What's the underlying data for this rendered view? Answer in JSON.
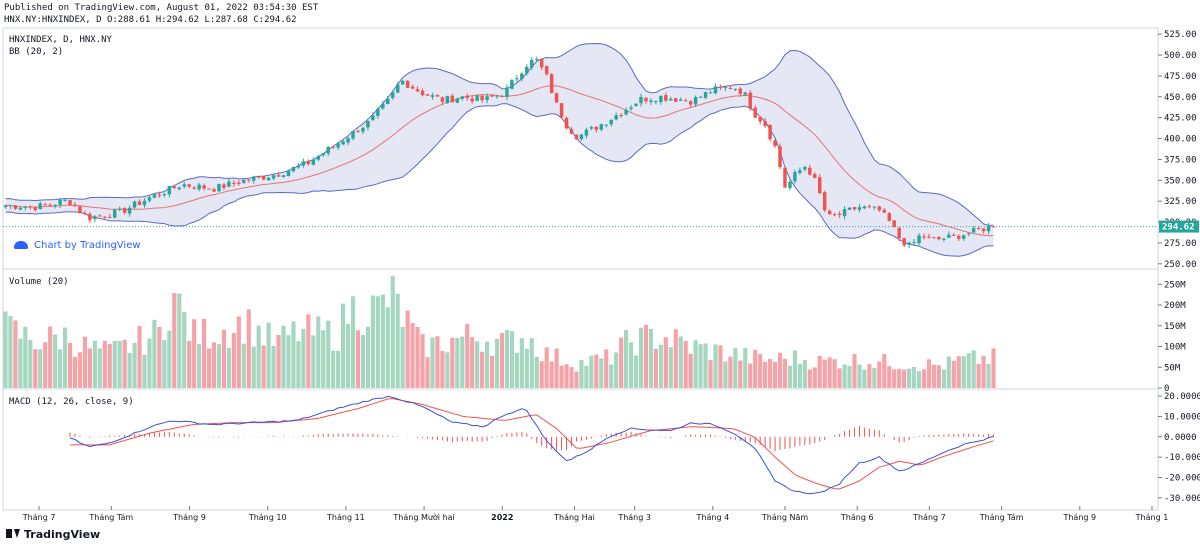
{
  "header": {
    "published": "Published on TradingView.com, August 01, 2022 03:54:30 EST",
    "symbol_line": "HNX.NY:HNXINDEX, D O:288.61 H:294.62 L:287.68 C:294.62"
  },
  "watermark": {
    "label": "Chart by TradingView"
  },
  "footer": {
    "logo_label": "TradingView"
  },
  "chart_data": [
    {
      "type": "candlestick",
      "title": "HNXINDEX, D, HNX.NY",
      "overlay_label": "BB (20, 2)",
      "ylim": [
        245,
        530
      ],
      "y_ticks": [
        "525.00",
        "500.00",
        "475.00",
        "450.00",
        "425.00",
        "400.00",
        "375.00",
        "350.00",
        "325.00",
        "300.00",
        "275.00",
        "250.00"
      ],
      "last_price": {
        "value": 294.62,
        "label": "294.62"
      },
      "colors": {
        "up": "#26a69a",
        "down": "#ef5350",
        "band_fill": "#c5cae9",
        "band_line": "#5c6bc0",
        "basis": "#e57373",
        "price_line": "#26a69a"
      },
      "close_anchors": [
        [
          0,
          320
        ],
        [
          3,
          318
        ],
        [
          6,
          326
        ],
        [
          8,
          305
        ],
        [
          11,
          312
        ],
        [
          14,
          330
        ],
        [
          17,
          345
        ],
        [
          20,
          340
        ],
        [
          23,
          350
        ],
        [
          26,
          357
        ],
        [
          29,
          370
        ],
        [
          32,
          395
        ],
        [
          35,
          420
        ],
        [
          37,
          448
        ],
        [
          38,
          470
        ],
        [
          40,
          455
        ],
        [
          42,
          446
        ],
        [
          44,
          450
        ],
        [
          46,
          446
        ],
        [
          48,
          455
        ],
        [
          50,
          488
        ],
        [
          51,
          495
        ],
        [
          52,
          475
        ],
        [
          53,
          440
        ],
        [
          54,
          415
        ],
        [
          55,
          402
        ],
        [
          57,
          415
        ],
        [
          59,
          430
        ],
        [
          61,
          447
        ],
        [
          63,
          450
        ],
        [
          66,
          445
        ],
        [
          68,
          458
        ],
        [
          70,
          462
        ],
        [
          71,
          455
        ],
        [
          72,
          430
        ],
        [
          73,
          418
        ],
        [
          74,
          390
        ],
        [
          75,
          340
        ],
        [
          76,
          358
        ],
        [
          77,
          368
        ],
        [
          78,
          345
        ],
        [
          79,
          305
        ],
        [
          80,
          308
        ],
        [
          82,
          318
        ],
        [
          84,
          314
        ],
        [
          85,
          300
        ],
        [
          86,
          280
        ],
        [
          87,
          270
        ],
        [
          88,
          285
        ],
        [
          89,
          278
        ],
        [
          91,
          282
        ],
        [
          93,
          288
        ],
        [
          94,
          292
        ],
        [
          95,
          294.62
        ]
      ]
    },
    {
      "type": "bar",
      "title": "Volume (20)",
      "ylim": [
        0,
        270
      ],
      "unit": "M",
      "y_ticks": [
        "250M",
        "200M",
        "150M",
        "100M",
        "50M",
        "0"
      ],
      "value_anchors": [
        [
          0,
          160
        ],
        [
          3,
          125
        ],
        [
          6,
          140
        ],
        [
          7,
          115
        ],
        [
          10,
          95
        ],
        [
          12,
          115
        ],
        [
          15,
          150
        ],
        [
          16,
          255
        ],
        [
          18,
          140
        ],
        [
          21,
          155
        ],
        [
          23,
          175
        ],
        [
          26,
          120
        ],
        [
          28,
          150
        ],
        [
          32,
          145
        ],
        [
          33,
          210
        ],
        [
          36,
          210
        ],
        [
          37,
          250
        ],
        [
          40,
          110
        ],
        [
          45,
          140
        ],
        [
          48,
          120
        ],
        [
          50,
          140
        ],
        [
          52,
          90
        ],
        [
          55,
          65
        ],
        [
          58,
          80
        ],
        [
          60,
          125
        ],
        [
          63,
          140
        ],
        [
          66,
          110
        ],
        [
          68,
          100
        ],
        [
          70,
          90
        ],
        [
          73,
          75
        ],
        [
          76,
          80
        ],
        [
          78,
          70
        ],
        [
          81,
          75
        ],
        [
          84,
          70
        ],
        [
          87,
          65
        ],
        [
          90,
          60
        ],
        [
          92,
          75
        ],
        [
          95,
          80
        ]
      ]
    },
    {
      "type": "line",
      "title": "MACD (12, 26, close, 9)",
      "ylim": [
        -35,
        23
      ],
      "y_ticks": [
        "20.0000",
        "10.0000",
        "0.0000",
        "-10.0000",
        "-20.0000",
        "-30.0000"
      ],
      "macd_anchors": [
        [
          6,
          0
        ],
        [
          8,
          -5
        ],
        [
          10,
          -3
        ],
        [
          14,
          5
        ],
        [
          16,
          8
        ],
        [
          20,
          6
        ],
        [
          24,
          7
        ],
        [
          28,
          8
        ],
        [
          32,
          14
        ],
        [
          35,
          18
        ],
        [
          37,
          20
        ],
        [
          40,
          15
        ],
        [
          43,
          7
        ],
        [
          46,
          5
        ],
        [
          48,
          11
        ],
        [
          50,
          14
        ],
        [
          52,
          -2
        ],
        [
          54,
          -12
        ],
        [
          56,
          -7
        ],
        [
          58,
          0
        ],
        [
          60,
          4
        ],
        [
          64,
          3
        ],
        [
          66,
          7
        ],
        [
          68,
          6
        ],
        [
          70,
          2
        ],
        [
          72,
          -5
        ],
        [
          74,
          -22
        ],
        [
          76,
          -27
        ],
        [
          78,
          -28
        ],
        [
          80,
          -24
        ],
        [
          82,
          -13
        ],
        [
          84,
          -10
        ],
        [
          86,
          -17
        ],
        [
          88,
          -13
        ],
        [
          90,
          -8
        ],
        [
          92,
          -4
        ],
        [
          95,
          0
        ]
      ],
      "signal_anchors": [
        [
          6,
          -4
        ],
        [
          10,
          -4
        ],
        [
          14,
          2
        ],
        [
          18,
          6
        ],
        [
          22,
          7
        ],
        [
          26,
          7
        ],
        [
          30,
          9
        ],
        [
          34,
          14
        ],
        [
          37,
          19
        ],
        [
          40,
          16
        ],
        [
          44,
          10
        ],
        [
          48,
          8
        ],
        [
          51,
          11
        ],
        [
          53,
          4
        ],
        [
          55,
          -6
        ],
        [
          58,
          -3
        ],
        [
          62,
          3
        ],
        [
          66,
          5
        ],
        [
          70,
          4
        ],
        [
          72,
          0
        ],
        [
          74,
          -10
        ],
        [
          76,
          -19
        ],
        [
          78,
          -23
        ],
        [
          80,
          -26
        ],
        [
          82,
          -22
        ],
        [
          84,
          -15
        ],
        [
          86,
          -12
        ],
        [
          88,
          -14
        ],
        [
          90,
          -10
        ],
        [
          93,
          -5
        ],
        [
          95,
          -2
        ]
      ]
    }
  ],
  "x_axis": {
    "labels": [
      {
        "slot": 6,
        "text": "Tháng 7"
      },
      {
        "slot": 18,
        "text": "Tháng Tám"
      },
      {
        "slot": 31,
        "text": "Tháng 9"
      },
      {
        "slot": 44,
        "text": "Tháng 10"
      },
      {
        "slot": 57,
        "text": "Tháng 11"
      },
      {
        "slot": 70,
        "text": "Tháng Mười hai"
      },
      {
        "slot": 83,
        "text": "2022"
      },
      {
        "slot": 95,
        "text": "Tháng Hai"
      },
      {
        "slot": 105,
        "text": "Tháng 3"
      },
      {
        "slot": 118,
        "text": "Tháng 4"
      },
      {
        "slot": 130,
        "text": "Tháng Năm"
      },
      {
        "slot": 142,
        "text": "Tháng 6"
      },
      {
        "slot": 154,
        "text": "Tháng 7"
      },
      {
        "slot": 166,
        "text": "Tháng Tám"
      },
      {
        "slot": 179,
        "text": "Tháng 9"
      },
      {
        "slot": 191,
        "text": "Tháng 1"
      }
    ]
  }
}
